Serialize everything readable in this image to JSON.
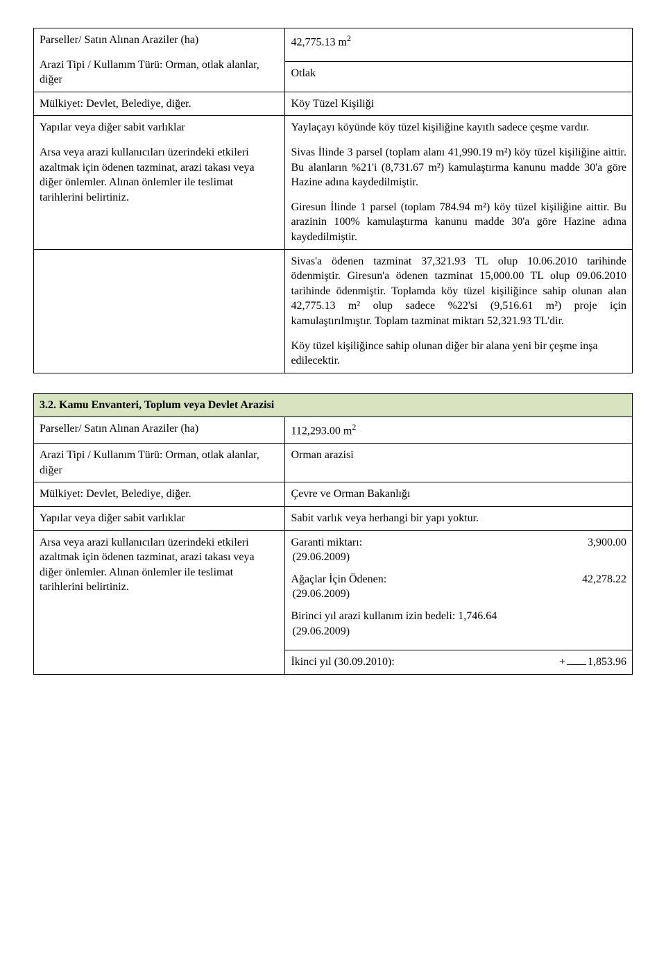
{
  "table1": {
    "rows": {
      "parcels_label": "Parseller/ Satın Alınan Araziler (ha)",
      "parcels_value_pre": "42,775.13 m",
      "parcels_value_sup": "2",
      "land_type_label": "Arazi Tipi / Kullanım Türü: Orman, otlak alanlar, diğer",
      "land_type_value": "Otlak",
      "ownership_label": "Mülkiyet: Devlet, Belediye, diğer.",
      "ownership_value": "Köy Tüzel Kişiliği",
      "structures_label": "Yapılar veya diğer sabit varlıklar",
      "structures_value": "Yaylaçayı köyünde köy tüzel kişiliğine kayıtlı sadece çeşme vardır.",
      "mitigation_label": "Arsa veya arazi kullanıcıları üzerindeki etkileri azaltmak için ödenen tazminat, arazi takası veya diğer önlemler. Alınan önlemler ile teslimat tarihlerini belirtiniz.",
      "mitigation_p1": "Sivas İlinde 3 parsel (toplam alanı 41,990.19 m²) köy tüzel kişiliğine aittir. Bu alanların %21'i (8,731.67 m²) kamulaştırma kanunu madde 30'a göre Hazine adına kaydedilmiştir.",
      "mitigation_p2": "Giresun İlinde 1 parsel (toplam 784.94 m²) köy tüzel kişiliğine aittir. Bu arazinin 100% kamulaştırma kanunu madde 30'a göre Hazine adına kaydedilmiştir.",
      "extra_p1": "Sivas'a ödenen tazminat 37,321.93 TL olup 10.06.2010 tarihinde ödenmiştir. Giresun'a ödenen tazminat 15,000.00 TL olup 09.06.2010 tarihinde ödenmiştir. Toplamda köy tüzel kişiliğince sahip olunan alan 42,775.13 m² olup sadece %22'si (9,516.61 m²) proje için kamulaştırılmıştır. Toplam tazminat miktarı 52,321.93 TL'dir.",
      "extra_p2": "Köy tüzel kişiliğince sahip olunan diğer bir alana yeni bir çeşme inşa edilecektir."
    }
  },
  "section2_header": "3.2. Kamu Envanteri, Toplum veya Devlet Arazisi",
  "table2": {
    "rows": {
      "parcels_label": "Parseller/ Satın Alınan Araziler (ha)",
      "parcels_value_pre": "112,293.00 m",
      "parcels_value_sup": "2",
      "land_type_label": "Arazi Tipi / Kullanım Türü: Orman, otlak alanlar, diğer",
      "land_type_value": "Orman arazisi",
      "ownership_label": "Mülkiyet: Devlet, Belediye, diğer.",
      "ownership_value": "Çevre ve Orman Bakanlığı",
      "structures_label": "Yapılar veya diğer sabit varlıklar",
      "structures_value": "Sabit varlık veya herhangi bir yapı yoktur.",
      "mitigation_label": "Arsa veya arazi kullanıcıları üzerindeki etkileri azaltmak için ödenen tazminat, arazi takası veya diğer önlemler. Alınan önlemler ile teslimat tarihlerini belirtiniz.",
      "fin": {
        "r1_label": "Garanti miktarı:",
        "r1_amount": "3,900.00",
        "r1_note": " (29.06.2009)",
        "r2_label": "Ağaçlar İçin Ödenen:",
        "r2_amount": "42,278.22",
        "r2_note": "(29.06.2009)",
        "r3_line1": "Birinci yıl arazi kullanım izin bedeli:  1,746.64",
        "r3_note": "(29.06.2009)",
        "r4_label": "İkinci yıl (30.09.2010):",
        "r4_plus": "+",
        "r4_amount": "1,853.96"
      }
    }
  }
}
